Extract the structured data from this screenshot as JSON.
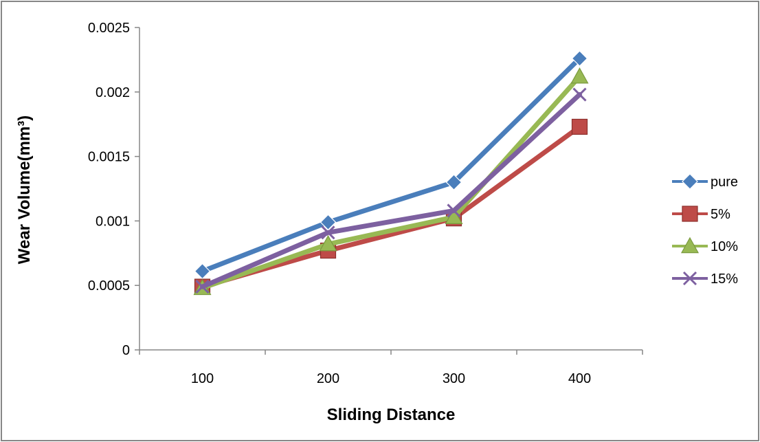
{
  "chart_data": {
    "type": "line",
    "xlabel": "Sliding Distance",
    "ylabel": "Wear Volume(mm³)",
    "categories": [
      "100",
      "200",
      "300",
      "400"
    ],
    "yticks": [
      "0",
      "0.0005",
      "0.001",
      "0.0015",
      "0.002",
      "0.0025"
    ],
    "ylim": [
      0,
      0.0025
    ],
    "grid": false,
    "legend_position": "right",
    "series": [
      {
        "name": "pure",
        "values": [
          0.00061,
          0.00099,
          0.0013,
          0.00226
        ],
        "color": "#4a7ebb",
        "marker": "diamond"
      },
      {
        "name": "5%",
        "values": [
          0.00049,
          0.00077,
          0.00102,
          0.00173
        ],
        "color": "#be4b48",
        "marker": "square"
      },
      {
        "name": "10%",
        "values": [
          0.00048,
          0.00082,
          0.00103,
          0.00212
        ],
        "color": "#98b954",
        "marker": "triangle"
      },
      {
        "name": "15%",
        "values": [
          0.00049,
          0.00091,
          0.00108,
          0.00198
        ],
        "color": "#7d60a0",
        "marker": "x"
      }
    ]
  }
}
